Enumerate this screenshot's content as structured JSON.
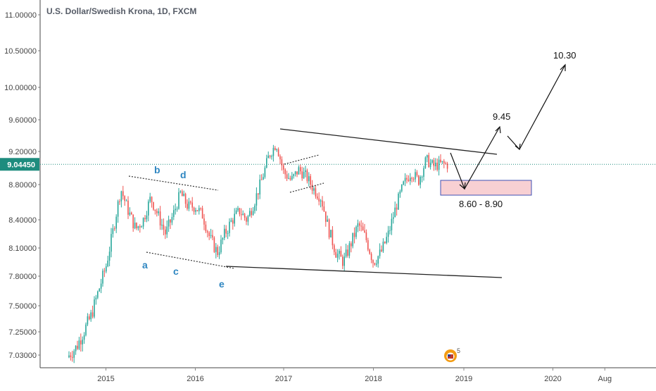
{
  "chart_data": {
    "type": "candlestick",
    "title": "U.S. Dollar/Swedish Krona, 1D, FXCM",
    "current_price_label": "9.04450",
    "current_price": 9.0445,
    "y_tick_labels": [
      "11.00000",
      "10.50000",
      "10.00000",
      "9.60000",
      "9.20000",
      "8.80000",
      "8.40000",
      "8.10000",
      "7.80000",
      "7.50000",
      "7.25000",
      "7.03000"
    ],
    "x_tick_labels": [
      "2015",
      "2016",
      "2017",
      "2018",
      "2019",
      "2020",
      "Aug"
    ],
    "price_path": [
      [
        "2014-07",
        6.95
      ],
      [
        "2014-09",
        7.1
      ],
      [
        "2014-11",
        7.4
      ],
      [
        "2015-01",
        7.9
      ],
      [
        "2015-02",
        8.3
      ],
      [
        "2015-03",
        8.75
      ],
      [
        "2015-04",
        8.5
      ],
      [
        "2015-05",
        8.3
      ],
      [
        "2015-06",
        8.4
      ],
      [
        "2015-07",
        8.65
      ],
      [
        "2015-08",
        8.45
      ],
      [
        "2015-09",
        8.25
      ],
      [
        "2015-10",
        8.45
      ],
      [
        "2015-11",
        8.7
      ],
      [
        "2015-12",
        8.55
      ],
      [
        "2016-01",
        8.55
      ],
      [
        "2016-02",
        8.45
      ],
      [
        "2016-03",
        8.2
      ],
      [
        "2016-04",
        8.05
      ],
      [
        "2016-05",
        8.25
      ],
      [
        "2016-06",
        8.4
      ],
      [
        "2016-07",
        8.5
      ],
      [
        "2016-08",
        8.4
      ],
      [
        "2016-09",
        8.6
      ],
      [
        "2016-10",
        8.85
      ],
      [
        "2016-11",
        9.15
      ],
      [
        "2016-12",
        9.3
      ],
      [
        "2017-01",
        8.95
      ],
      [
        "2017-02",
        8.85
      ],
      [
        "2017-03",
        8.98
      ],
      [
        "2017-04",
        8.9
      ],
      [
        "2017-05",
        8.75
      ],
      [
        "2017-06",
        8.65
      ],
      [
        "2017-07",
        8.3
      ],
      [
        "2017-08",
        8.05
      ],
      [
        "2017-09",
        7.95
      ],
      [
        "2017-10",
        8.15
      ],
      [
        "2017-11",
        8.35
      ],
      [
        "2017-12",
        8.2
      ],
      [
        "2018-01",
        7.95
      ],
      [
        "2018-02",
        8.05
      ],
      [
        "2018-03",
        8.25
      ],
      [
        "2018-04",
        8.55
      ],
      [
        "2018-05",
        8.8
      ],
      [
        "2018-06",
        8.95
      ],
      [
        "2018-07",
        8.85
      ],
      [
        "2018-08",
        9.1
      ],
      [
        "2018-09",
        9.02
      ],
      [
        "2018-10",
        9.05
      ],
      [
        "2018-11",
        9.04
      ]
    ],
    "annotations": {
      "wave_labels": [
        "a",
        "b",
        "c",
        "d",
        "e"
      ],
      "target_zone_label": "8.60 - 8.90",
      "target_1": "9.45",
      "target_2": "10.30"
    },
    "colors": {
      "up": "#26a69a",
      "down": "#ef5350",
      "price_line": "#1e8c7e",
      "wave_label": "#2e86c1",
      "zone_fill": "#f8d0d3",
      "zone_border": "#3f51b5"
    },
    "grid": false
  }
}
